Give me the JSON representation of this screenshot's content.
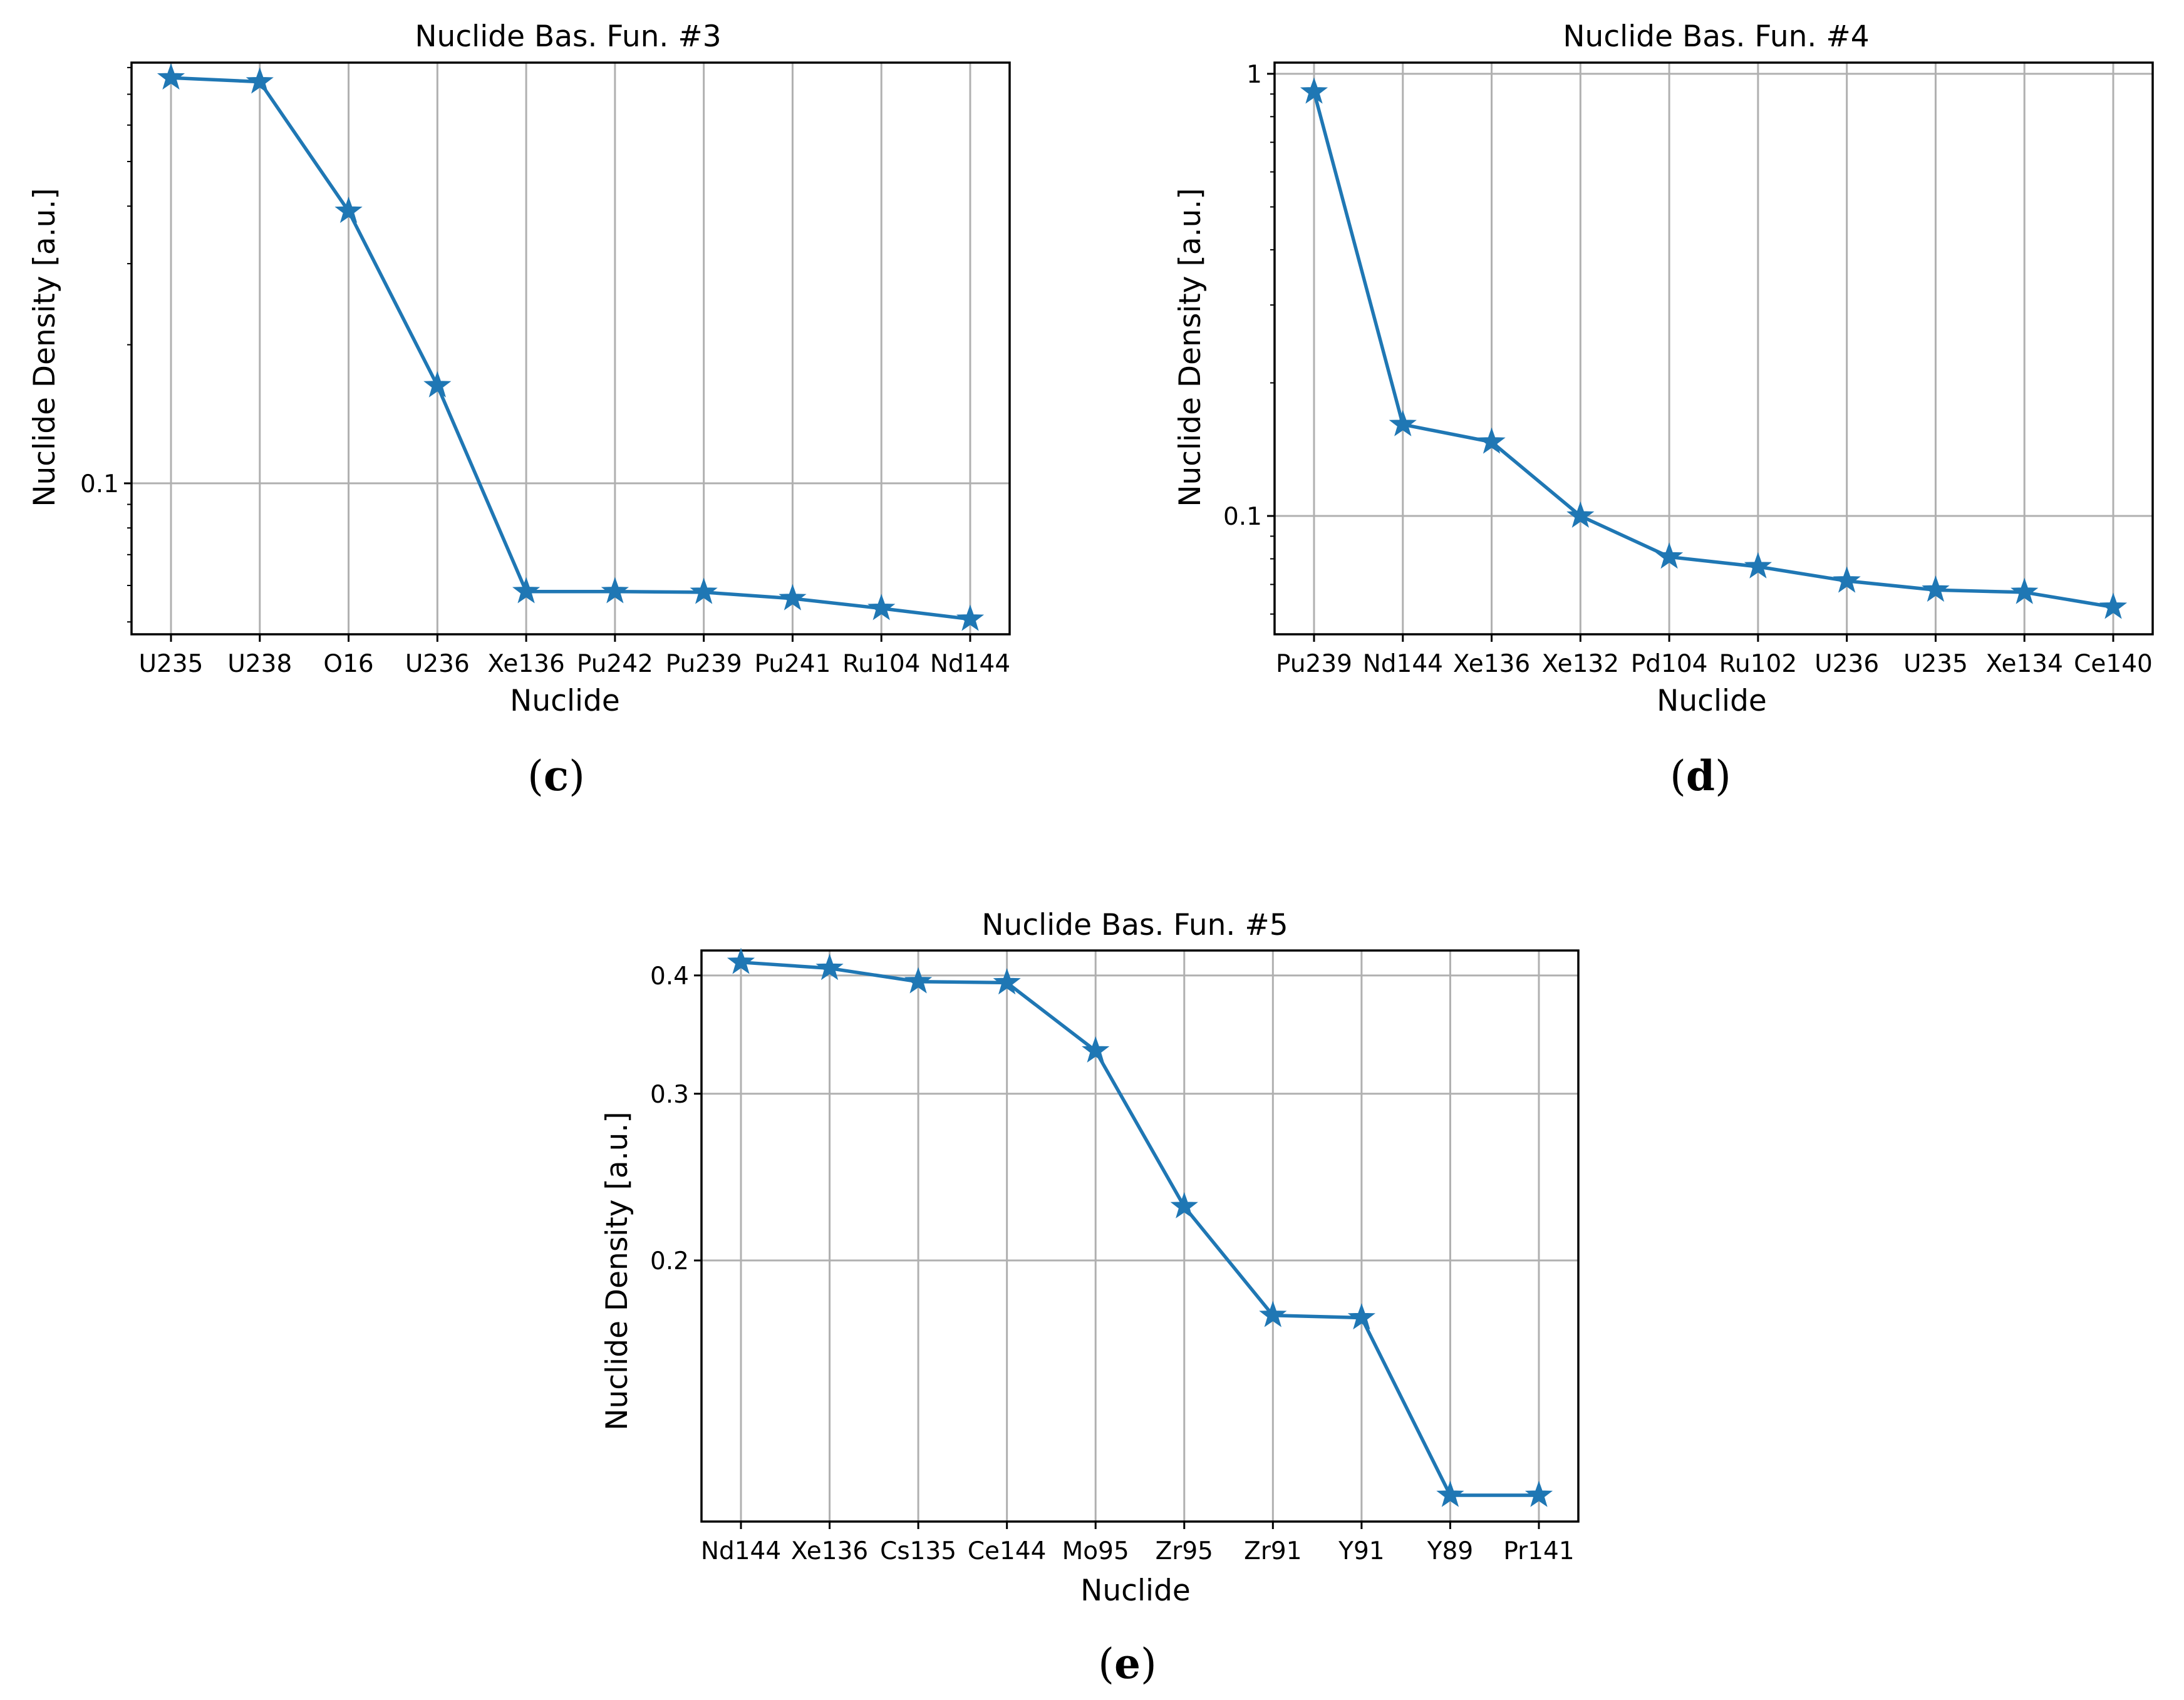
{
  "colors": {
    "series": "#1f77b4",
    "grid": "#b0b0b0",
    "axes": "#000000"
  },
  "chart_data": [
    {
      "id": "c",
      "caption_letter": "c",
      "type": "line",
      "marker": "star",
      "yscale": "log",
      "title": "Nuclide Bas. Fun. #3",
      "xlabel": "Nuclide",
      "ylabel": "Nuclide Density [a.u.]",
      "categories": [
        "U235",
        "U238",
        "O16",
        "U236",
        "Xe136",
        "Pu242",
        "Pu239",
        "Pu241",
        "Ru104",
        "Nd144"
      ],
      "values": [
        0.76,
        0.745,
        0.39,
        0.163,
        0.0582,
        0.0582,
        0.058,
        0.0562,
        0.0535,
        0.0507
      ],
      "ylim": [
        0.047,
        0.82
      ],
      "yticks": [
        {
          "value": 0.1,
          "label": "0.1"
        }
      ],
      "minor_yticks": [
        0.05,
        0.06,
        0.07,
        0.08,
        0.09,
        0.2,
        0.3,
        0.4,
        0.5,
        0.6,
        0.7,
        0.8
      ],
      "grid": true
    },
    {
      "id": "d",
      "caption_letter": "d",
      "type": "line",
      "marker": "star",
      "yscale": "log",
      "title": "Nuclide Bas. Fun. #4",
      "xlabel": "Nuclide",
      "ylabel": "Nuclide Density [a.u.]",
      "categories": [
        "Pu239",
        "Nd144",
        "Xe136",
        "Xe132",
        "Pd104",
        "Ru102",
        "U236",
        "U235",
        "Xe134",
        "Ce140"
      ],
      "values": [
        0.91,
        0.161,
        0.147,
        0.1,
        0.0808,
        0.0768,
        0.0713,
        0.068,
        0.0672,
        0.0622
      ],
      "ylim": [
        0.054,
        1.06
      ],
      "yticks": [
        {
          "value": 0.1,
          "label": "0.1"
        },
        {
          "value": 1,
          "label": "1"
        }
      ],
      "minor_yticks": [
        0.06,
        0.07,
        0.08,
        0.09,
        0.2,
        0.3,
        0.4,
        0.5,
        0.6,
        0.7,
        0.8,
        0.9
      ],
      "grid": true
    },
    {
      "id": "e",
      "caption_letter": "e",
      "type": "line",
      "marker": "star",
      "yscale": "log",
      "title": "Nuclide Bas. Fun. #5",
      "xlabel": "Nuclide",
      "ylabel": "Nuclide Density [a.u.]",
      "categories": [
        "Nd144",
        "Xe136",
        "Cs135",
        "Ce144",
        "Mo95",
        "Zr95",
        "Zr91",
        "Y91",
        "Y89",
        "Pr141"
      ],
      "values": [
        0.413,
        0.407,
        0.394,
        0.393,
        0.333,
        0.228,
        0.175,
        0.174,
        0.113,
        0.113
      ],
      "ylim": [
        0.106,
        0.425
      ],
      "yticks": [
        {
          "value": 0.2,
          "label": "0.2"
        },
        {
          "value": 0.3,
          "label": "0.3"
        },
        {
          "value": 0.4,
          "label": "0.4"
        }
      ],
      "minor_yticks": [],
      "grid": true
    }
  ]
}
